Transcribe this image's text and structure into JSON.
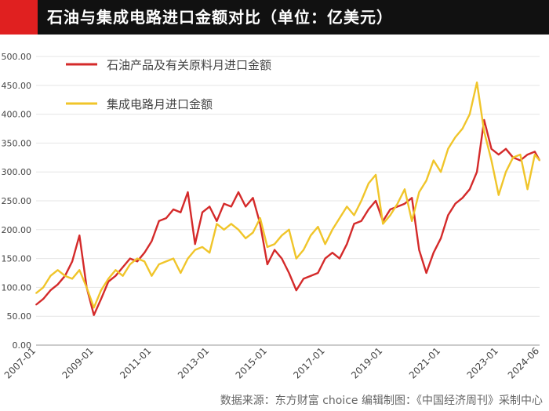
{
  "title": "石油与集成电路进口金额对比（单位：亿美元）",
  "source": "数据来源：东方财富 choice  编辑制图：《中国经济周刊》采制中心",
  "colors": {
    "title_bg": "#111111",
    "title_accent": "#e02020",
    "oil": "#d42a2a",
    "ic": "#f0c52a",
    "grid": "#e6e6e6",
    "text": "#444444"
  },
  "chart_data": {
    "type": "line",
    "title": "石油与集成电路进口金额对比（单位：亿美元）",
    "xlabel": "",
    "ylabel": "",
    "ylim": [
      0,
      500
    ],
    "xlim": [
      "2007-01",
      "2024-06"
    ],
    "grid": "horizontal",
    "legend_position": "top-left",
    "yticks": [
      "0.00",
      "50.00",
      "100.00",
      "150.00",
      "200.00",
      "250.00",
      "300.00",
      "350.00",
      "400.00",
      "450.00",
      "500.00"
    ],
    "xticks": [
      "2007-01",
      "2009-01",
      "2011-01",
      "2013-01",
      "2015-01",
      "2017-01",
      "2019-01",
      "2021-01",
      "2023-01",
      "2024-06"
    ],
    "series": [
      {
        "name": "石油产品及有关原料月进口金额",
        "color": "#d42a2a",
        "points": [
          [
            "2007-01",
            70
          ],
          [
            "2007-04",
            80
          ],
          [
            "2007-07",
            95
          ],
          [
            "2007-10",
            105
          ],
          [
            "2008-01",
            120
          ],
          [
            "2008-04",
            145
          ],
          [
            "2008-07",
            190
          ],
          [
            "2008-10",
            100
          ],
          [
            "2009-01",
            52
          ],
          [
            "2009-04",
            80
          ],
          [
            "2009-07",
            110
          ],
          [
            "2009-10",
            120
          ],
          [
            "2010-01",
            135
          ],
          [
            "2010-04",
            150
          ],
          [
            "2010-07",
            145
          ],
          [
            "2010-10",
            160
          ],
          [
            "2011-01",
            180
          ],
          [
            "2011-04",
            215
          ],
          [
            "2011-07",
            220
          ],
          [
            "2011-10",
            235
          ],
          [
            "2012-01",
            230
          ],
          [
            "2012-04",
            265
          ],
          [
            "2012-07",
            175
          ],
          [
            "2012-10",
            230
          ],
          [
            "2013-01",
            240
          ],
          [
            "2013-04",
            215
          ],
          [
            "2013-07",
            245
          ],
          [
            "2013-10",
            240
          ],
          [
            "2014-01",
            265
          ],
          [
            "2014-04",
            240
          ],
          [
            "2014-07",
            255
          ],
          [
            "2014-10",
            210
          ],
          [
            "2015-01",
            140
          ],
          [
            "2015-04",
            165
          ],
          [
            "2015-07",
            150
          ],
          [
            "2015-10",
            125
          ],
          [
            "2016-01",
            95
          ],
          [
            "2016-04",
            115
          ],
          [
            "2016-07",
            120
          ],
          [
            "2016-10",
            125
          ],
          [
            "2017-01",
            150
          ],
          [
            "2017-04",
            160
          ],
          [
            "2017-07",
            150
          ],
          [
            "2017-10",
            175
          ],
          [
            "2018-01",
            210
          ],
          [
            "2018-04",
            215
          ],
          [
            "2018-07",
            235
          ],
          [
            "2018-10",
            250
          ],
          [
            "2019-01",
            215
          ],
          [
            "2019-04",
            235
          ],
          [
            "2019-07",
            240
          ],
          [
            "2019-10",
            245
          ],
          [
            "2020-01",
            255
          ],
          [
            "2020-04",
            165
          ],
          [
            "2020-07",
            125
          ],
          [
            "2020-10",
            160
          ],
          [
            "2021-01",
            185
          ],
          [
            "2021-04",
            225
          ],
          [
            "2021-07",
            245
          ],
          [
            "2021-10",
            255
          ],
          [
            "2022-01",
            270
          ],
          [
            "2022-04",
            300
          ],
          [
            "2022-07",
            390
          ],
          [
            "2022-10",
            340
          ],
          [
            "2023-01",
            330
          ],
          [
            "2023-04",
            340
          ],
          [
            "2023-07",
            325
          ],
          [
            "2023-10",
            320
          ],
          [
            "2024-01",
            330
          ],
          [
            "2024-04",
            335
          ],
          [
            "2024-06",
            320
          ]
        ]
      },
      {
        "name": "集成电路月进口金额",
        "color": "#f0c52a",
        "points": [
          [
            "2007-01",
            90
          ],
          [
            "2007-04",
            100
          ],
          [
            "2007-07",
            120
          ],
          [
            "2007-10",
            130
          ],
          [
            "2008-01",
            120
          ],
          [
            "2008-04",
            115
          ],
          [
            "2008-07",
            130
          ],
          [
            "2008-10",
            100
          ],
          [
            "2009-01",
            65
          ],
          [
            "2009-04",
            95
          ],
          [
            "2009-07",
            115
          ],
          [
            "2009-10",
            130
          ],
          [
            "2010-01",
            120
          ],
          [
            "2010-04",
            140
          ],
          [
            "2010-07",
            150
          ],
          [
            "2010-10",
            145
          ],
          [
            "2011-01",
            120
          ],
          [
            "2011-04",
            140
          ],
          [
            "2011-07",
            145
          ],
          [
            "2011-10",
            150
          ],
          [
            "2012-01",
            125
          ],
          [
            "2012-04",
            150
          ],
          [
            "2012-07",
            165
          ],
          [
            "2012-10",
            170
          ],
          [
            "2013-01",
            160
          ],
          [
            "2013-04",
            210
          ],
          [
            "2013-07",
            200
          ],
          [
            "2013-10",
            210
          ],
          [
            "2014-01",
            200
          ],
          [
            "2014-04",
            185
          ],
          [
            "2014-07",
            195
          ],
          [
            "2014-10",
            220
          ],
          [
            "2015-01",
            170
          ],
          [
            "2015-04",
            175
          ],
          [
            "2015-07",
            190
          ],
          [
            "2015-10",
            200
          ],
          [
            "2016-01",
            150
          ],
          [
            "2016-04",
            165
          ],
          [
            "2016-07",
            190
          ],
          [
            "2016-10",
            205
          ],
          [
            "2017-01",
            175
          ],
          [
            "2017-04",
            200
          ],
          [
            "2017-07",
            220
          ],
          [
            "2017-10",
            240
          ],
          [
            "2018-01",
            225
          ],
          [
            "2018-04",
            250
          ],
          [
            "2018-07",
            280
          ],
          [
            "2018-10",
            295
          ],
          [
            "2019-01",
            210
          ],
          [
            "2019-04",
            225
          ],
          [
            "2019-07",
            245
          ],
          [
            "2019-10",
            270
          ],
          [
            "2020-01",
            215
          ],
          [
            "2020-04",
            265
          ],
          [
            "2020-07",
            285
          ],
          [
            "2020-10",
            320
          ],
          [
            "2021-01",
            300
          ],
          [
            "2021-04",
            340
          ],
          [
            "2021-07",
            360
          ],
          [
            "2021-10",
            375
          ],
          [
            "2022-01",
            400
          ],
          [
            "2022-04",
            455
          ],
          [
            "2022-07",
            370
          ],
          [
            "2022-10",
            320
          ],
          [
            "2023-01",
            260
          ],
          [
            "2023-04",
            300
          ],
          [
            "2023-07",
            325
          ],
          [
            "2023-10",
            330
          ],
          [
            "2024-01",
            270
          ],
          [
            "2024-04",
            330
          ],
          [
            "2024-06",
            320
          ]
        ]
      }
    ]
  }
}
